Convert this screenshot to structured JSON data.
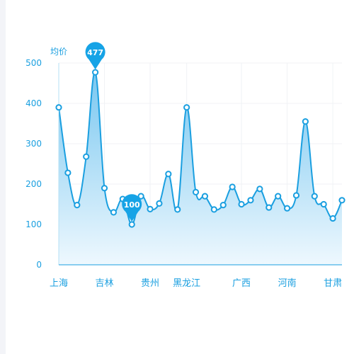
{
  "chart_data": {
    "type": "area",
    "ylabel": "均价",
    "ylim": [
      0,
      500
    ],
    "yticks": [
      0,
      100,
      200,
      300,
      400,
      500
    ],
    "x_tick_labels": [
      "上海",
      "吉林",
      "贵州",
      "黑龙江",
      "广西",
      "河南",
      "甘肃"
    ],
    "x_tick_label_indices": [
      0,
      5,
      10,
      14,
      20,
      25,
      30
    ],
    "values": [
      390,
      228,
      148,
      268,
      477,
      190,
      130,
      163,
      100,
      170,
      138,
      152,
      225,
      137,
      390,
      180,
      170,
      137,
      148,
      193,
      150,
      160,
      188,
      142,
      170,
      140,
      172,
      355,
      170,
      150,
      115,
      160
    ],
    "markpoints": [
      {
        "type": "max",
        "index": 4,
        "label": "477"
      },
      {
        "type": "min",
        "index": 8,
        "label": "100"
      }
    ],
    "grid": true,
    "colors": {
      "line": "#1a9fe0",
      "fill_top": "#79c7f0",
      "fill_bottom": "#eef8fe",
      "text": "#1a9fe0",
      "axis": "#b6e0f5",
      "grid": "#f0f2f5",
      "pin": "#16a3e6"
    }
  }
}
